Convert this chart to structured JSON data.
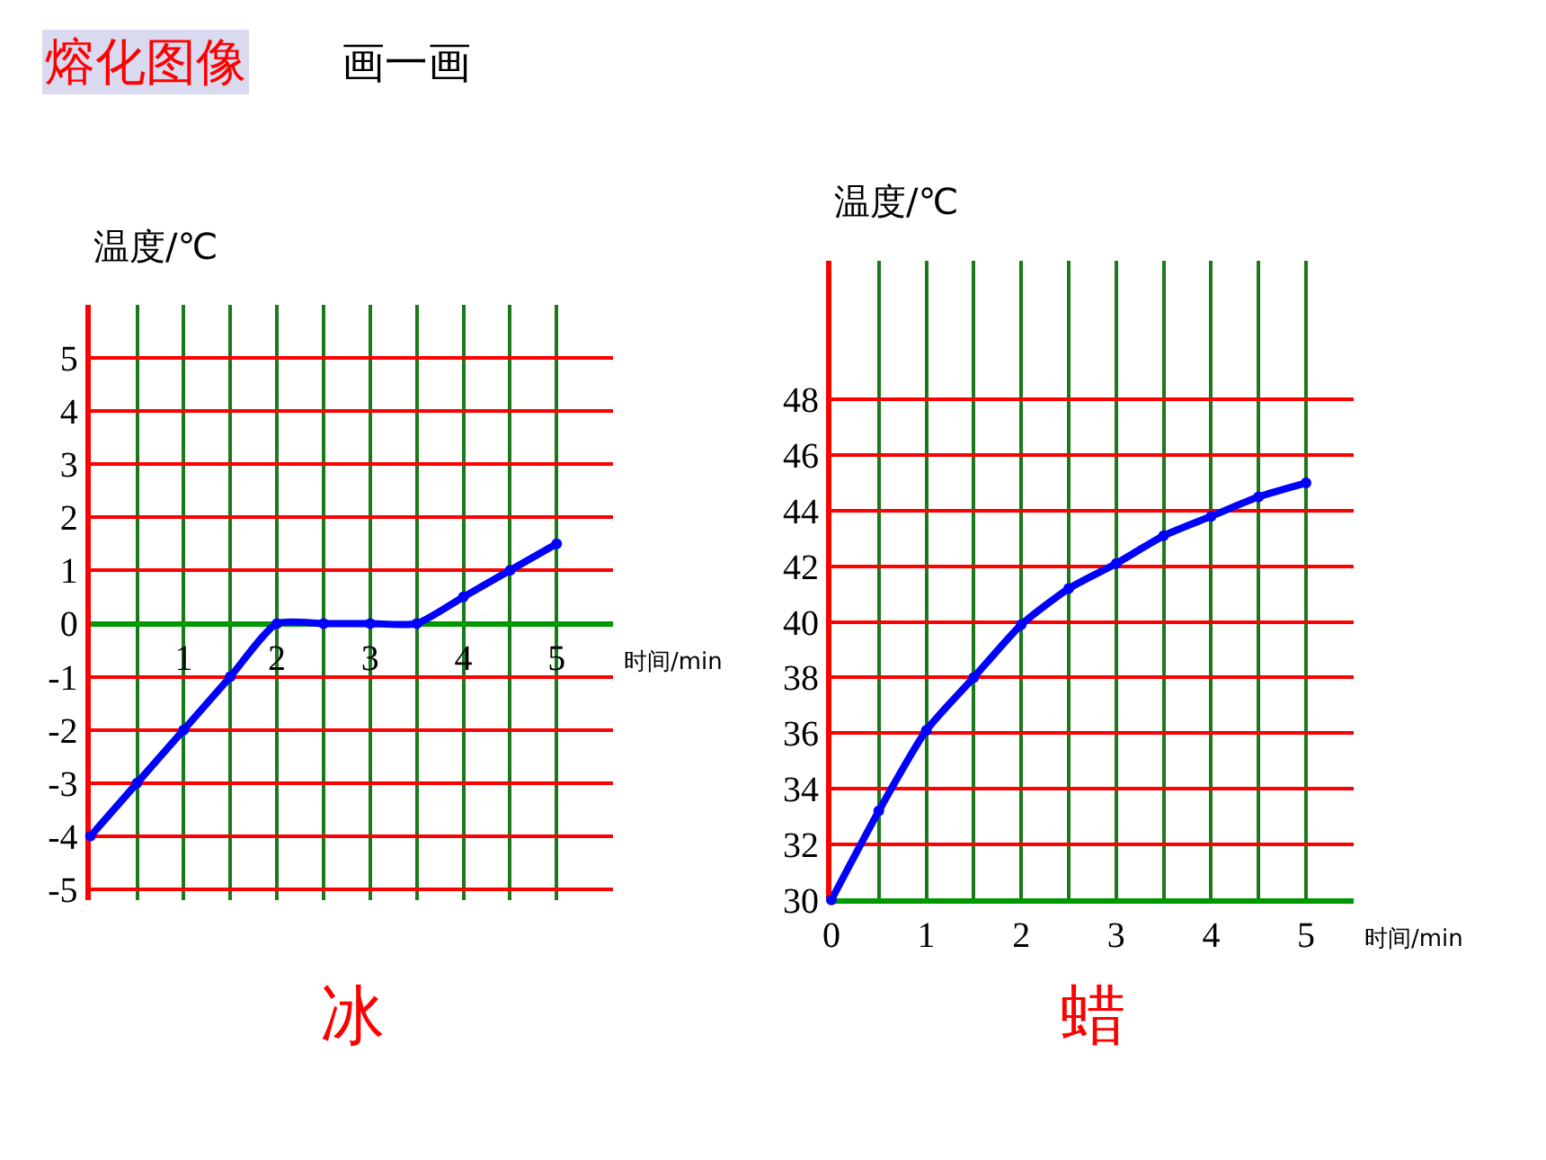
{
  "chart_data": [
    {
      "type": "line",
      "title": "熔化图像",
      "subtitle": "画一画",
      "xlabel": "时间/min",
      "ylabel": "温度/℃",
      "annotations": [
        "冰"
      ],
      "x": [
        0,
        0.5,
        1,
        1.5,
        2,
        2.5,
        3,
        3.5,
        4,
        4.5,
        5
      ],
      "series": [
        {
          "color": "#0000ff",
          "values": [
            -4,
            -3,
            -2,
            -1,
            0,
            0,
            0,
            0,
            0.5,
            1,
            1.5
          ]
        }
      ],
      "xlim": [
        0,
        5.6
      ],
      "xticks": [
        {
          "value": 0.5,
          "label": null
        },
        1,
        {
          "value": 1.5,
          "label": null
        },
        2,
        {
          "value": 2.5,
          "label": null
        },
        3,
        {
          "value": 3.5,
          "label": null
        },
        4,
        {
          "value": 4.5,
          "label": null
        },
        5
      ],
      "ylim": [
        -5.2,
        6
      ],
      "yticks": [
        -5,
        -4,
        -3,
        -2,
        -1,
        0,
        1,
        2,
        3,
        4,
        5
      ],
      "grid": true,
      "legend": false,
      "marker": "circle",
      "line_style": "solid"
    },
    {
      "type": "line",
      "xlabel": "时间/min",
      "ylabel": "温度/℃",
      "annotations": [
        "蜡"
      ],
      "x": [
        0,
        0.5,
        1,
        1.5,
        2,
        2.5,
        3,
        3.5,
        4,
        4.5,
        5
      ],
      "series": [
        {
          "color": "#0000ff",
          "values": [
            30,
            33.2,
            36.1,
            38,
            39.9,
            41.2,
            42.1,
            43.1,
            43.8,
            44.5,
            45
          ]
        }
      ],
      "xlim": [
        0,
        5.5
      ],
      "xticks": [
        0,
        {
          "value": 0.5,
          "label": null
        },
        1,
        {
          "value": 1.5,
          "label": null
        },
        2,
        {
          "value": 2.5,
          "label": null
        },
        3,
        {
          "value": 3.5,
          "label": null
        },
        4,
        {
          "value": 4.5,
          "label": null
        },
        5
      ],
      "ylim": [
        30,
        53
      ],
      "yticks": [
        30,
        32,
        34,
        36,
        38,
        40,
        42,
        44,
        46,
        48
      ],
      "grid": true,
      "legend": false,
      "marker": "circle",
      "line_style": "solid"
    }
  ]
}
